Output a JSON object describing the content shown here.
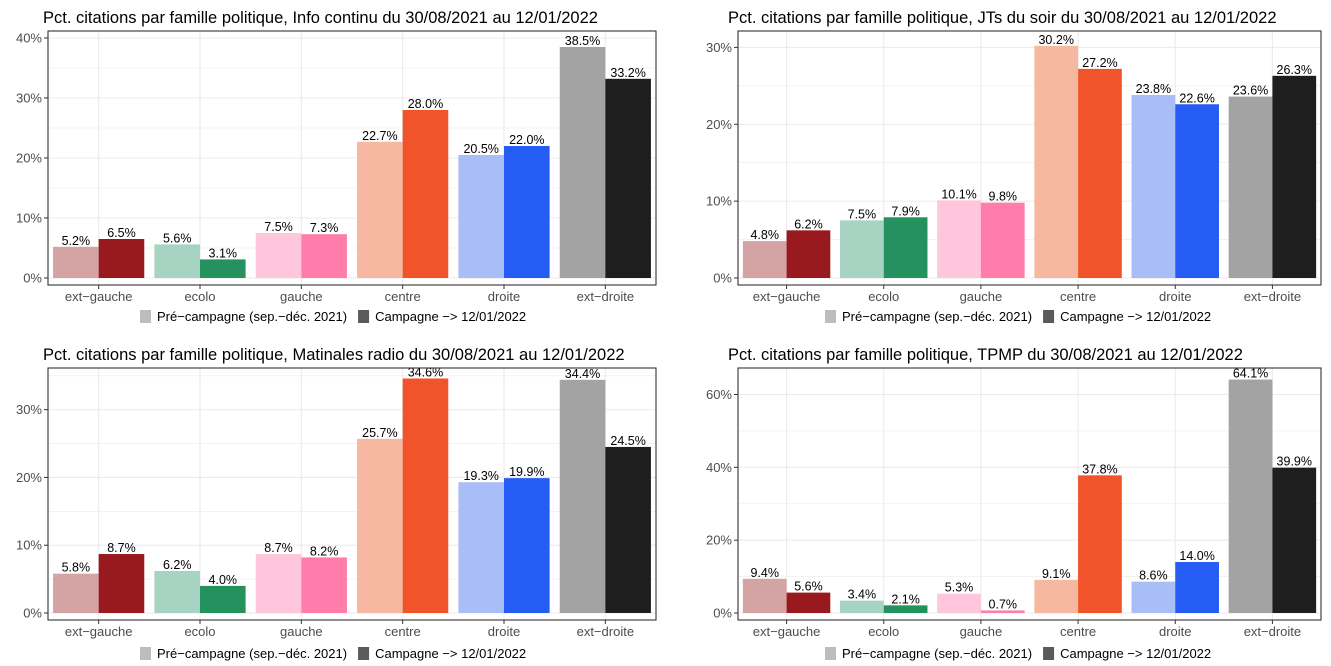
{
  "charts": [
    {
      "chart_data": {
        "type": "bar",
        "title": "Pct. citations par famille politique, Info continu du 30/08/2021 au 12/01/2022",
        "xlabel": "",
        "ylabel": "",
        "categories": [
          "ext−gauche",
          "ecolo",
          "gauche",
          "centre",
          "droite",
          "ext−droite"
        ],
        "series": [
          {
            "name": "Pré−campagne (sep.−déc. 2021)",
            "values": [
              5.2,
              5.6,
              7.5,
              22.7,
              20.5,
              38.5
            ]
          },
          {
            "name": "Campagne −> 12/01/2022",
            "values": [
              6.5,
              3.1,
              7.3,
              28.0,
              22.0,
              33.2
            ]
          }
        ],
        "value_labels": [
          [
            "5.2%",
            "5.6%",
            "7.5%",
            "22.7%",
            "20.5%",
            "38.5%"
          ],
          [
            "6.5%",
            "3.1%",
            "7.3%",
            "28.0%",
            "22.0%",
            "33.2%"
          ]
        ],
        "ylim": [
          0,
          41.0
        ],
        "yticks": [
          0,
          10,
          20,
          30,
          40
        ],
        "ytick_labels": [
          "0%",
          "10%",
          "20%",
          "30%",
          "40%"
        ],
        "grid": true,
        "legend_position": "bottom"
      }
    },
    {
      "chart_data": {
        "type": "bar",
        "title": "Pct. citations par famille politique, JTs du soir du 30/08/2021 au 12/01/2022",
        "xlabel": "",
        "ylabel": "",
        "categories": [
          "ext−gauche",
          "ecolo",
          "gauche",
          "centre",
          "droite",
          "ext−droite"
        ],
        "series": [
          {
            "name": "Pré−campagne (sep.−déc. 2021)",
            "values": [
              4.8,
              7.5,
              10.1,
              30.2,
              23.8,
              23.6
            ]
          },
          {
            "name": "Campagne −> 12/01/2022",
            "values": [
              6.2,
              7.9,
              9.8,
              27.2,
              22.6,
              26.3
            ]
          }
        ],
        "value_labels": [
          [
            "4.8%",
            "7.5%",
            "10.1%",
            "30.2%",
            "23.8%",
            "23.6%"
          ],
          [
            "6.2%",
            "7.9%",
            "9.8%",
            "27.2%",
            "22.6%",
            "26.3%"
          ]
        ],
        "ylim": [
          0,
          32.0
        ],
        "yticks": [
          0,
          10,
          20,
          30
        ],
        "ytick_labels": [
          "0%",
          "10%",
          "20%",
          "30%"
        ],
        "grid": true,
        "legend_position": "bottom"
      }
    },
    {
      "chart_data": {
        "type": "bar",
        "title": "Pct. citations par famille politique, Matinales radio du 30/08/2021 au 12/01/2022",
        "xlabel": "",
        "ylabel": "",
        "categories": [
          "ext−gauche",
          "ecolo",
          "gauche",
          "centre",
          "droite",
          "ext−droite"
        ],
        "series": [
          {
            "name": "Pré−campagne (sep.−déc. 2021)",
            "values": [
              5.8,
              6.2,
              8.7,
              25.7,
              19.3,
              34.4
            ]
          },
          {
            "name": "Campagne −> 12/01/2022",
            "values": [
              8.7,
              4.0,
              8.2,
              34.6,
              19.9,
              24.5
            ]
          }
        ],
        "value_labels": [
          [
            "5.8%",
            "6.2%",
            "8.7%",
            "25.7%",
            "19.3%",
            "34.4%"
          ],
          [
            "8.7%",
            "4.0%",
            "8.2%",
            "34.6%",
            "19.9%",
            "24.5%"
          ]
        ],
        "ylim": [
          0,
          36.0
        ],
        "yticks": [
          0,
          10,
          20,
          30
        ],
        "ytick_labels": [
          "0%",
          "10%",
          "20%",
          "30%"
        ],
        "grid": true,
        "legend_position": "bottom"
      }
    },
    {
      "chart_data": {
        "type": "bar",
        "title": "Pct. citations par famille politique, TPMP du 30/08/2021 au 12/01/2022",
        "xlabel": "",
        "ylabel": "",
        "categories": [
          "ext−gauche",
          "ecolo",
          "gauche",
          "centre",
          "droite",
          "ext−droite"
        ],
        "series": [
          {
            "name": "Pré−campagne (sep.−déc. 2021)",
            "values": [
              9.4,
              3.4,
              5.3,
              9.1,
              8.6,
              64.1
            ]
          },
          {
            "name": "Campagne −> 12/01/2022",
            "values": [
              5.6,
              2.1,
              0.7,
              37.8,
              14.0,
              39.9
            ]
          }
        ],
        "value_labels": [
          [
            "9.4%",
            "3.4%",
            "5.3%",
            "9.1%",
            "8.6%",
            "64.1%"
          ],
          [
            "5.6%",
            "2.1%",
            "0.7%",
            "37.8%",
            "14.0%",
            "39.9%"
          ]
        ],
        "ylim": [
          0,
          67.0
        ],
        "yticks": [
          0,
          20,
          40,
          60
        ],
        "ytick_labels": [
          "0%",
          "20%",
          "40%",
          "60%"
        ],
        "grid": true,
        "legend_position": "bottom"
      }
    }
  ],
  "colors": {
    "pre": [
      "#d4a3a3",
      "#a6d3c2",
      "#ffc6dc",
      "#f7b8a1",
      "#a9bdf7",
      "#a3a3a3"
    ],
    "camp": [
      "#981a1e",
      "#24915f",
      "#ff7cab",
      "#f1542a",
      "#255cf3",
      "#1e1e1e"
    ],
    "legend_pre": "#bdbdbd",
    "legend_camp": "#5a5a5a",
    "grid": "#ebebeb",
    "axis": "#333333",
    "text": "#000000",
    "tick_text": "#4d4d4d"
  },
  "legend": {
    "pre_label": "Pré−campagne (sep.−déc. 2021)",
    "camp_label": "Campagne −> 12/01/2022"
  }
}
